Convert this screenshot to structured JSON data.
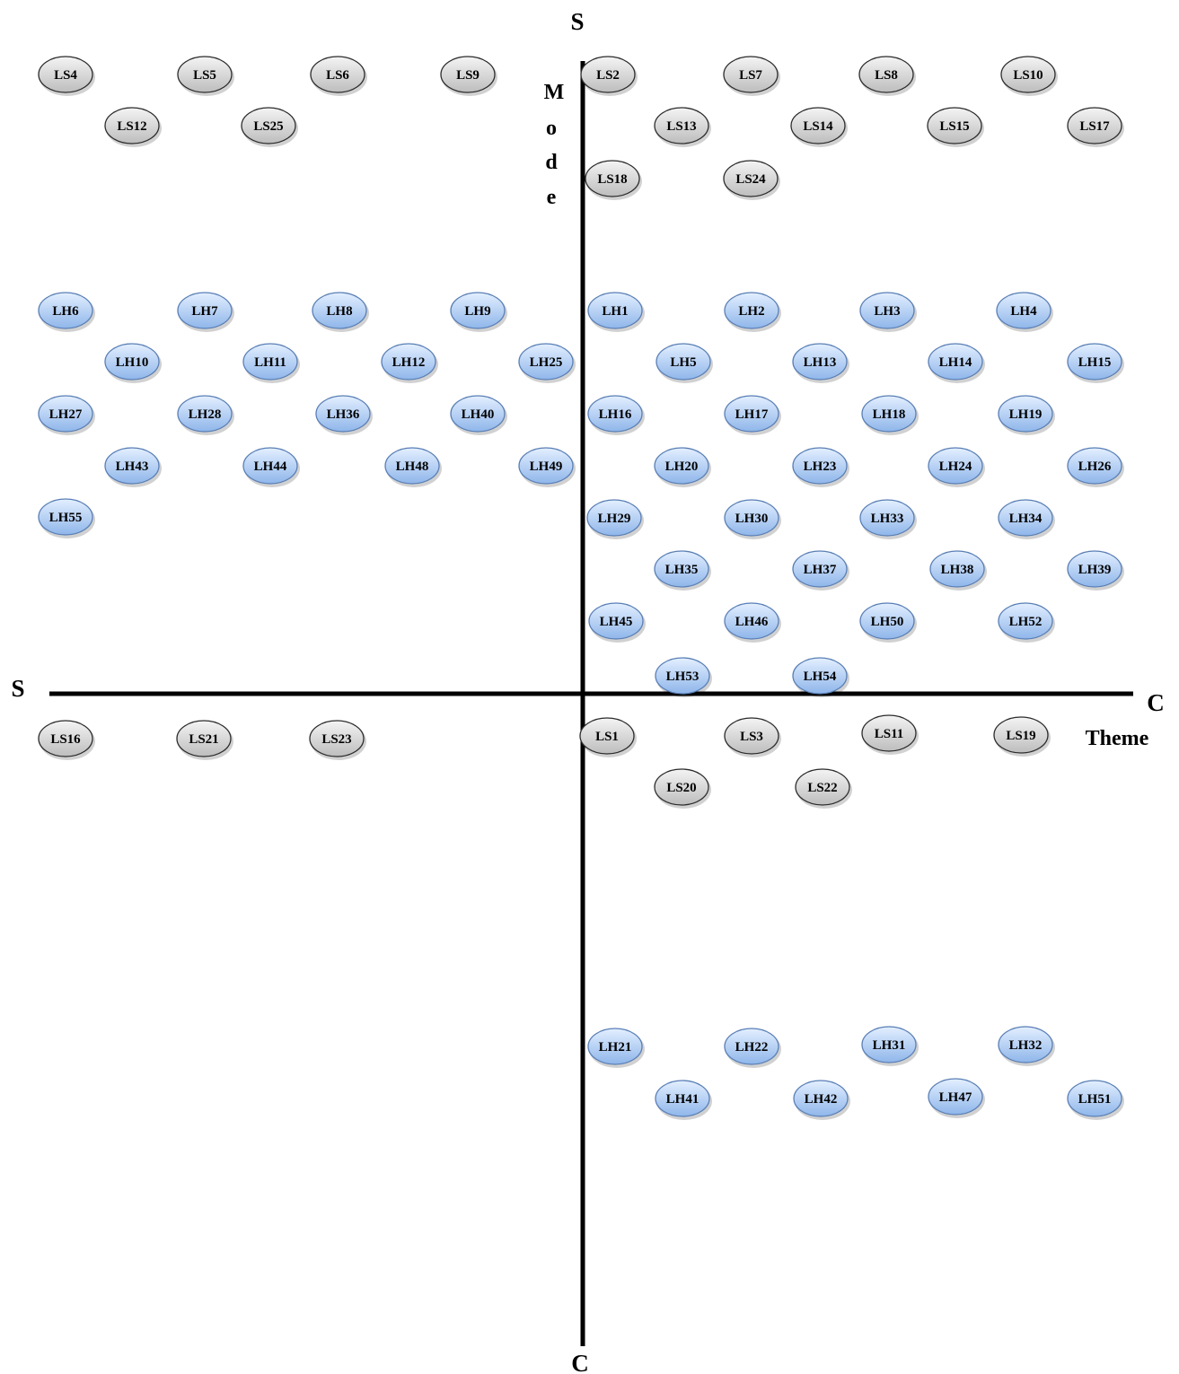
{
  "axes": {
    "top_label": "S",
    "bottom_label": "C",
    "left_label": "S",
    "right_label": "C",
    "vertical_title_letters": [
      "M",
      "o",
      "d",
      "e"
    ],
    "horizontal_title": "Theme"
  },
  "colors": {
    "ls_fill_light": "#f4f4f4",
    "ls_fill_dark": "#bdbdbd",
    "lh_fill_light": "#e3efff",
    "lh_fill_dark": "#8fb6ea",
    "node_stroke": "#2b2b2b",
    "axis": "#000000"
  },
  "nodes": {
    "ls_top_left": [
      "LS4",
      "LS5",
      "LS6",
      "LS9",
      "LS12",
      "LS25"
    ],
    "ls_top_right": [
      "LS2",
      "LS7",
      "LS8",
      "LS10",
      "LS13",
      "LS14",
      "LS15",
      "LS17",
      "LS18",
      "LS24"
    ],
    "lh_top_left": [
      "LH6",
      "LH7",
      "LH8",
      "LH9",
      "LH10",
      "LH11",
      "LH12",
      "LH25",
      "LH27",
      "LH28",
      "LH36",
      "LH40",
      "LH43",
      "LH44",
      "LH48",
      "LH49",
      "LH55"
    ],
    "lh_top_right": [
      "LH1",
      "LH2",
      "LH3",
      "LH4",
      "LH5",
      "LH13",
      "LH14",
      "LH15",
      "LH16",
      "LH17",
      "LH18",
      "LH19",
      "LH20",
      "LH23",
      "LH24",
      "LH26",
      "LH29",
      "LH30",
      "LH33",
      "LH34",
      "LH35",
      "LH37",
      "LH38",
      "LH39",
      "LH45",
      "LH46",
      "LH50",
      "LH52",
      "LH53",
      "LH54"
    ],
    "ls_bottom_left": [
      "LS16",
      "LS21",
      "LS23"
    ],
    "ls_bottom_right": [
      "LS1",
      "LS3",
      "LS11",
      "LS19",
      "LS20",
      "LS22"
    ],
    "lh_bottom_right": [
      "LH21",
      "LH22",
      "LH31",
      "LH32",
      "LH41",
      "LH42",
      "LH47",
      "LH51"
    ]
  }
}
